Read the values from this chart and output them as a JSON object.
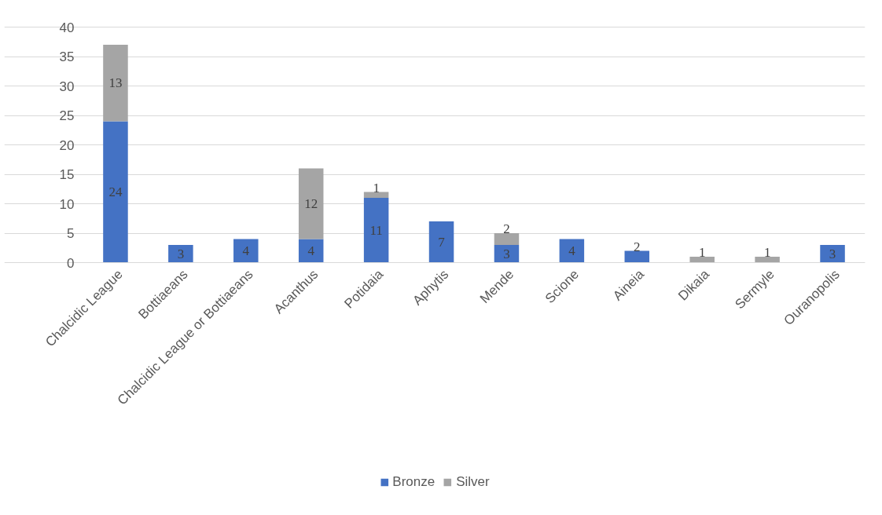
{
  "chart_data": {
    "type": "bar",
    "stacked": true,
    "categories": [
      "Chalcidic League",
      "Bottiaeans",
      "Chalcidic League or Bottiaeans",
      "Acanthus",
      "Potidaia",
      "Aphytis",
      "Mende",
      "Scione",
      "Aineia",
      "Dikaia",
      "Sermyle",
      "Ouranopolis"
    ],
    "series": [
      {
        "name": "Bronze",
        "color": "#4472c4",
        "values": [
          24,
          3,
          4,
          4,
          11,
          7,
          3,
          4,
          2,
          null,
          null,
          3
        ]
      },
      {
        "name": "Silver",
        "color": "#a5a5a5",
        "values": [
          13,
          null,
          null,
          12,
          1,
          null,
          2,
          null,
          null,
          1,
          1,
          null
        ]
      }
    ],
    "ylim": [
      0,
      40
    ],
    "yticks": [
      0,
      5,
      10,
      15,
      20,
      25,
      30,
      35,
      40
    ],
    "grid": "y",
    "legend": "bottom",
    "data_labels": true
  }
}
